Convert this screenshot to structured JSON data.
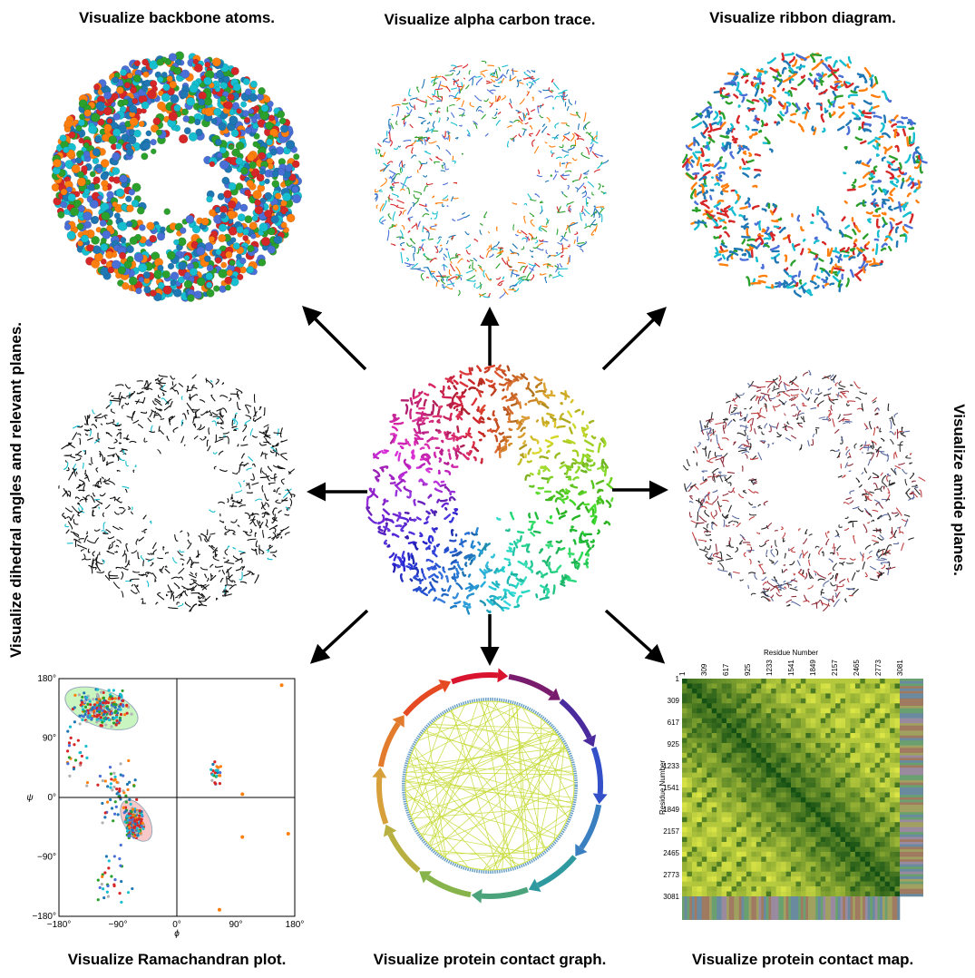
{
  "panels": {
    "backbone": {
      "title": "Visualize backbone atoms."
    },
    "alpha_trace": {
      "title": "Visualize alpha carbon trace."
    },
    "ribbon": {
      "title": "Visualize ribbon diagram."
    },
    "dihedral": {
      "title": "Visualize dihedral angles and relevant planes."
    },
    "amide": {
      "title": "Visualize amide planes."
    },
    "ramachandran": {
      "title": "Visualize Ramachandran plot.",
      "xlabel": "ϕ",
      "ylabel": "ψ",
      "xticks": [
        "−180°",
        "−90°",
        "0°",
        "90°",
        "180°"
      ],
      "yticks": [
        "180°",
        "90°",
        "0°",
        "−90°",
        "−180°"
      ],
      "xlim": [
        -180,
        180
      ],
      "ylim": [
        -180,
        180
      ],
      "favored_regions": [
        "beta-sheet",
        "right-handed alpha-helix"
      ]
    },
    "contact_graph": {
      "title": "Visualize protein contact graph."
    },
    "contact_map": {
      "title": "Visualize protein contact map.",
      "xlabel": "Residue Number",
      "ylabel": "Residue Number",
      "ticks": [
        "1",
        "309",
        "617",
        "925",
        "1233",
        "1541",
        "1849",
        "2157",
        "2465",
        "2773",
        "3081"
      ],
      "colormap": [
        "#0b4d12",
        "#2e8b1e",
        "#8fcf2a",
        "#e6ec4a"
      ]
    }
  },
  "colors": {
    "arrow": "#000000",
    "cpk": [
      "#d62728",
      "#1f77b4",
      "#2ca02c",
      "#17becf",
      "#4a6fd6",
      "#ff7f0e",
      "#b0b0b0"
    ]
  }
}
